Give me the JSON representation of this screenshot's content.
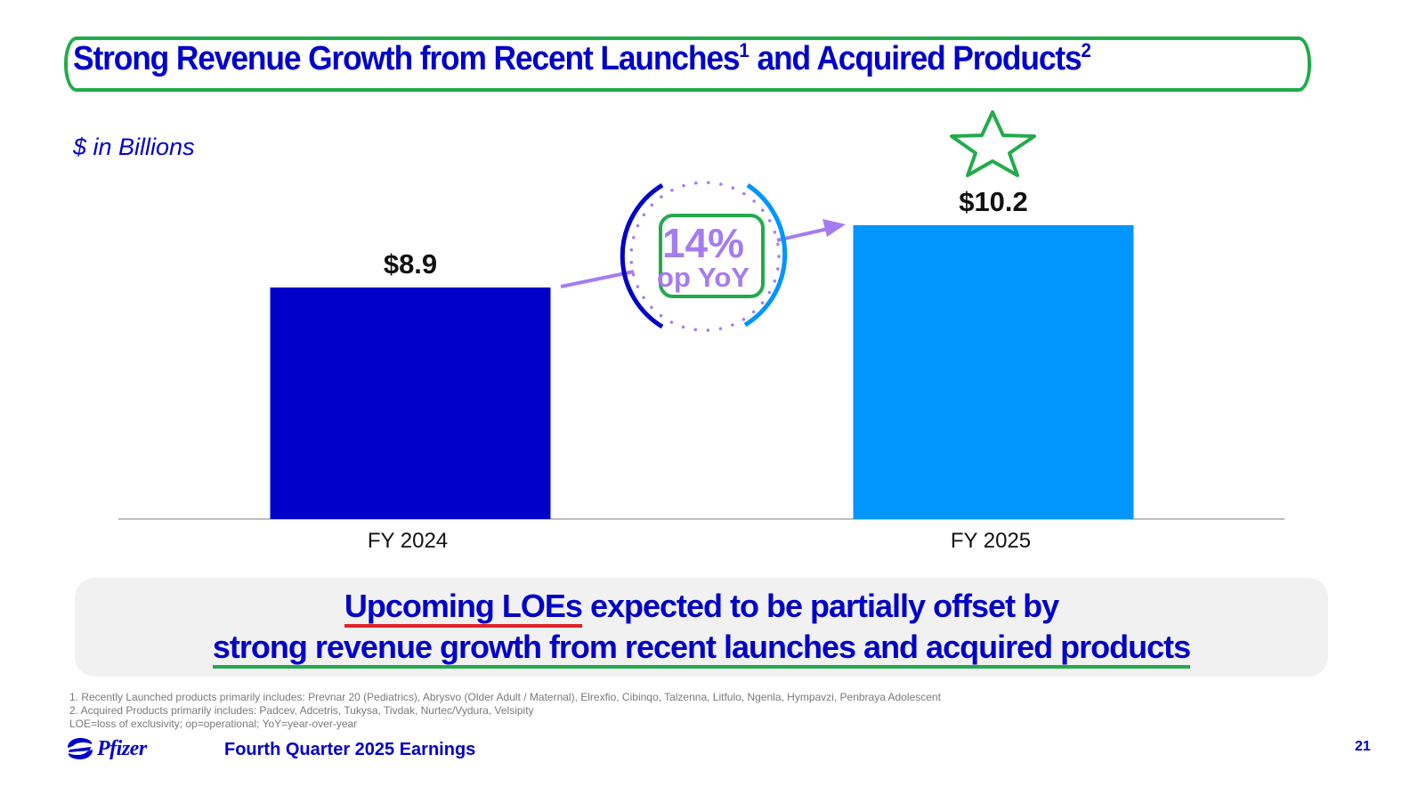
{
  "slide": {
    "title_parts": {
      "part1": "Strong Revenue Growth from Recent Launches",
      "sup1": "1",
      "part2": " and Acquired Products",
      "sup2": "2"
    },
    "units_label": "$ in Billions",
    "callout": {
      "line1_underlined": "Upcoming LOEs",
      "line1_rest": " expected to be partially offset by",
      "line2": "strong revenue growth from recent launches and acquired products"
    },
    "footnotes": [
      "1. Recently Launched products primarily includes: Prevnar 20 (Pediatrics), Abrysvo (Older Adult / Maternal), Elrexfio, Cibinqo, Talzenna, Litfulo, Ngenla, Hympavzi, Penbraya Adolescent",
      "2. Acquired Products primarily includes: Padcev, Adcetris, Tukysa, Tivdak, Nurtec/Vydura, Velsipity",
      "LOE=loss of exclusivity; op=operational; YoY=year-over-year"
    ],
    "footer": {
      "logo_text": "Pfizer",
      "title": "Fourth Quarter 2025 Earnings",
      "page_number": "21"
    },
    "colors": {
      "brand_blue": "#0000c9",
      "bar_2024": "#0000c9",
      "bar_2025": "#0095ff",
      "growth_purple": "#a47cf0",
      "highlight_green": "#22ab4a",
      "highlight_red": "#e32228"
    },
    "annotations": {
      "star_icon": "star-outline-icon",
      "yoy_badge": {
        "value": "14%",
        "label": "op YoY"
      }
    }
  },
  "chart_data": {
    "type": "bar",
    "title": "Strong Revenue Growth from Recent Launches and Acquired Products",
    "xlabel": "",
    "ylabel": "$ in Billions",
    "categories": [
      "FY 2024",
      "FY 2025"
    ],
    "values": [
      8.9,
      10.2
    ],
    "data_labels": [
      "$8.9",
      "$10.2"
    ],
    "annotations": [
      {
        "text": "14% op YoY",
        "from": "FY 2024",
        "to": "FY 2025"
      }
    ],
    "grid": false,
    "legend": "none"
  }
}
